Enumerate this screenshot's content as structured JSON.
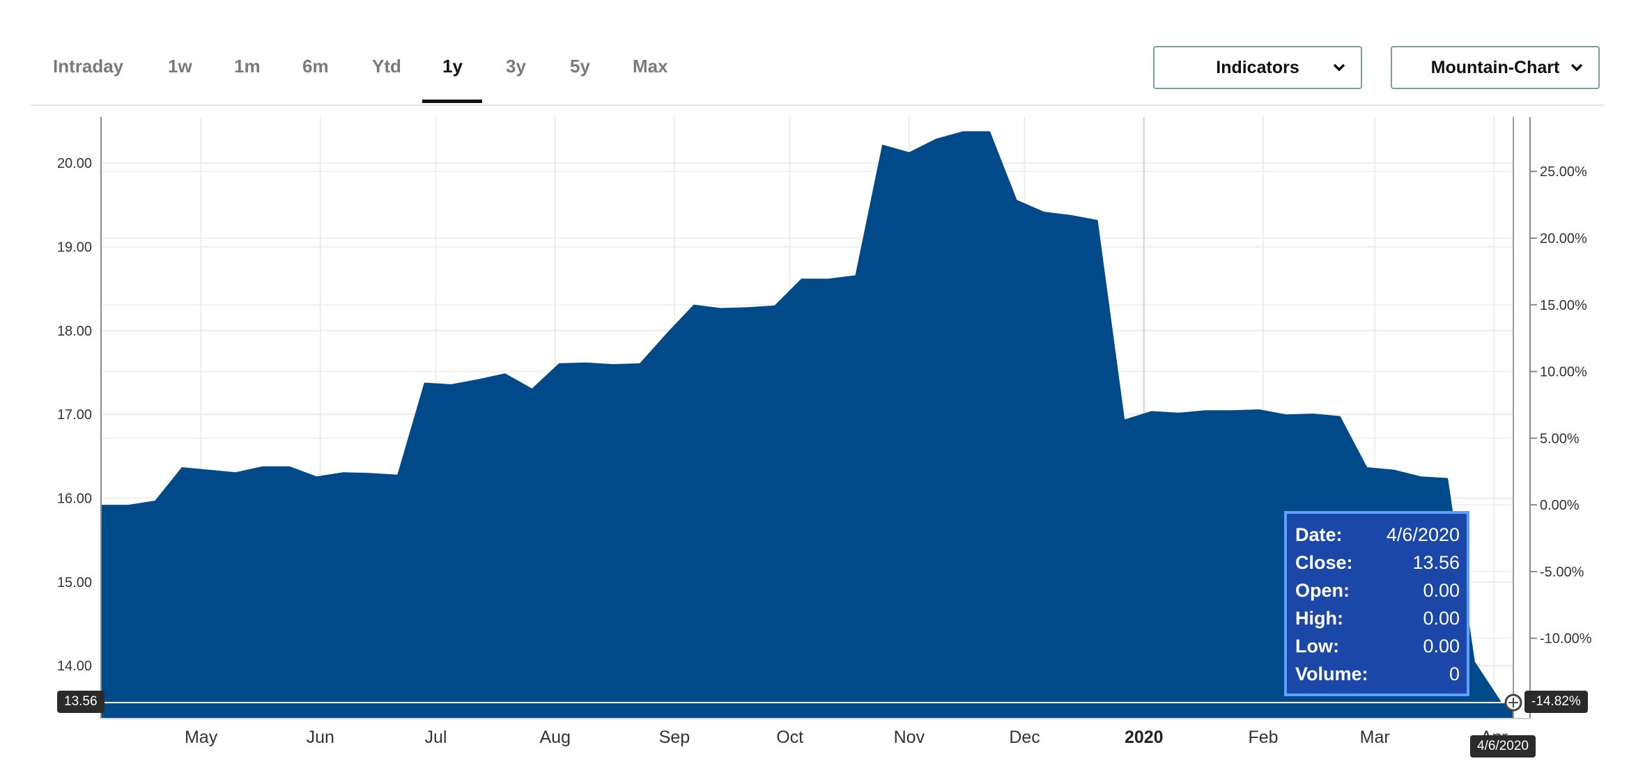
{
  "tabs": [
    "Intraday",
    "1w",
    "1m",
    "6m",
    "Ytd",
    "1y",
    "3y",
    "5y",
    "Max"
  ],
  "active_tab": "1y",
  "indicators_label": "Indicators",
  "chart_type_label": "Mountain-Chart",
  "icons": {
    "dropdown": "chevron-down-icon",
    "crosshair": "circle-marker-icon"
  },
  "colors": {
    "area": "#014a8a",
    "tooltip_bg": "#1a47a8",
    "tooltip_border": "#5ea0ff",
    "badge": "#2b2b2b"
  },
  "tooltip": {
    "date_label": "Date:",
    "date": "4/6/2020",
    "close_label": "Close:",
    "close": "13.56",
    "open_label": "Open:",
    "open": "0.00",
    "high_label": "High:",
    "high": "0.00",
    "low_label": "Low:",
    "low": "0.00",
    "volume_label": "Volume:",
    "volume": "0"
  },
  "crosshair": {
    "price_label": "13.56",
    "pct_label": "-14.82%",
    "date_label": "4/6/2020"
  },
  "chart_data": {
    "type": "area",
    "title": "",
    "xlabel": "",
    "ylabel": "",
    "ylim": [
      13.37,
      20.55
    ],
    "y_ticks": [
      "14.00",
      "15.00",
      "16.00",
      "17.00",
      "18.00",
      "19.00",
      "20.00"
    ],
    "y2_ticks": [
      "-10.00%",
      "-5.00%",
      "0.00%",
      "5.00%",
      "10.00%",
      "15.00%",
      "20.00%",
      "25.00%"
    ],
    "x_ticks": [
      {
        "label": "May",
        "date": "2019-05-01"
      },
      {
        "label": "Jun",
        "date": "2019-06-01"
      },
      {
        "label": "Jul",
        "date": "2019-07-01"
      },
      {
        "label": "Aug",
        "date": "2019-08-01"
      },
      {
        "label": "Sep",
        "date": "2019-09-01"
      },
      {
        "label": "Oct",
        "date": "2019-10-01"
      },
      {
        "label": "Nov",
        "date": "2019-11-01"
      },
      {
        "label": "Dec",
        "date": "2019-12-01"
      },
      {
        "label": "2020",
        "date": "2020-01-01"
      },
      {
        "label": "Feb",
        "date": "2020-02-01"
      },
      {
        "label": "Mar",
        "date": "2020-03-01"
      },
      {
        "label": "Apr",
        "date": "2020-04-01"
      }
    ],
    "grid": true,
    "series": [
      {
        "x": [
          "2019-04-05",
          "2019-04-12",
          "2019-04-19",
          "2019-04-26",
          "2019-05-03",
          "2019-05-10",
          "2019-05-17",
          "2019-05-24",
          "2019-05-31",
          "2019-06-07",
          "2019-06-14",
          "2019-06-21",
          "2019-06-28",
          "2019-07-05",
          "2019-07-12",
          "2019-07-19",
          "2019-07-26",
          "2019-08-02",
          "2019-08-09",
          "2019-08-16",
          "2019-08-23",
          "2019-08-30",
          "2019-09-06",
          "2019-09-13",
          "2019-09-20",
          "2019-09-27",
          "2019-10-04",
          "2019-10-11",
          "2019-10-18",
          "2019-10-25",
          "2019-11-01",
          "2019-11-08",
          "2019-11-15",
          "2019-11-22",
          "2019-11-29",
          "2019-12-06",
          "2019-12-13",
          "2019-12-20",
          "2019-12-27",
          "2020-01-03",
          "2020-01-10",
          "2020-01-17",
          "2020-01-24",
          "2020-01-31",
          "2020-02-07",
          "2020-02-14",
          "2020-02-21",
          "2020-02-28",
          "2020-03-06",
          "2020-03-13",
          "2020-03-20",
          "2020-03-27",
          "2020-04-03",
          "2020-04-06"
        ],
        "values": [
          15.92,
          15.92,
          15.97,
          16.37,
          16.34,
          16.31,
          16.38,
          16.38,
          16.26,
          16.31,
          16.3,
          16.28,
          17.38,
          17.36,
          17.42,
          17.49,
          17.31,
          17.61,
          17.62,
          17.6,
          17.61,
          17.97,
          18.31,
          18.27,
          18.28,
          18.3,
          18.62,
          18.62,
          18.66,
          20.22,
          20.13,
          20.29,
          20.38,
          20.38,
          19.56,
          19.42,
          19.38,
          19.32,
          16.94,
          17.04,
          17.02,
          17.05,
          17.05,
          17.06,
          17.0,
          17.01,
          16.98,
          16.37,
          16.34,
          16.26,
          16.24,
          14.05,
          13.56,
          13.56
        ]
      }
    ]
  }
}
